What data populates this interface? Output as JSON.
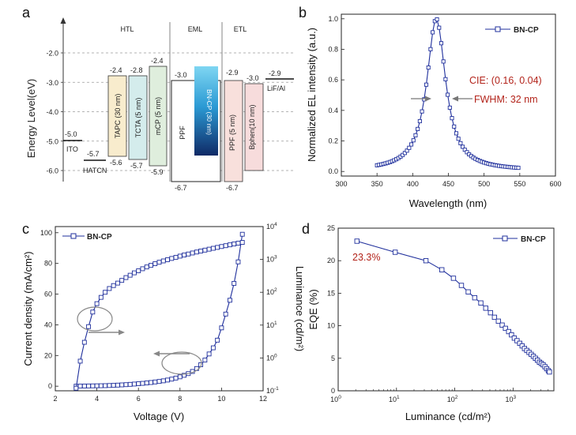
{
  "panels": {
    "a": "a",
    "b": "b",
    "c": "c",
    "d": "d"
  },
  "colors": {
    "series": "#1f2f9c",
    "annotation_red": "#b3241b",
    "tapc": "#f8eccd",
    "tcta": "#d4ecec",
    "mcp": "#dfeedd",
    "ppf": "#f8e0dc",
    "bphen": "#f7dcdc",
    "eml_top": "#7fd6f2",
    "eml_bottom": "#0f2a66"
  },
  "chart_data": [
    {
      "type": "diagram",
      "ylabel": "Energy Level(eV)",
      "yticks": [
        "-2.0",
        "-3.0",
        "-4.0",
        "-5.0",
        "-6.0"
      ],
      "ytick_values": [
        -2.0,
        -3.0,
        -4.0,
        -5.0,
        -6.0
      ],
      "ylim": [
        -7.2,
        -1.0
      ],
      "sections": [
        "HTL",
        "EML",
        "ETL"
      ],
      "lines": [
        {
          "name": "ITO",
          "value": -5.0,
          "value_label": "-5.0"
        },
        {
          "name": "HATCN",
          "value": -5.7,
          "value_label": "-5.7"
        },
        {
          "name": "LiF/Al",
          "value": -2.9,
          "value_label": "-2.9"
        }
      ],
      "layers": [
        {
          "name": "TAPC (30 nm)",
          "lumo": -2.4,
          "homo": -5.6,
          "lumo_label": "-2.4",
          "homo_label": "-5.6"
        },
        {
          "name": "TCTA (5  nm)",
          "lumo": -2.8,
          "homo": -5.7,
          "lumo_label": "-2.8",
          "homo_label": "-5.7"
        },
        {
          "name": "mCP (5  nm)",
          "lumo": -2.4,
          "homo": -5.9,
          "lumo_label": "-2.4",
          "homo_label": "-5.9"
        },
        {
          "name": "PPF",
          "lumo": -3.0,
          "homo": -6.7,
          "lumo_label": "-3.0",
          "homo_label": "-6.7"
        },
        {
          "name": "BN-CP (30 nm)"
        },
        {
          "name": "PPF (5 nm)",
          "lumo": -2.9,
          "homo": -6.7,
          "lumo_label": "-2.9",
          "homo_label": "-6.7"
        },
        {
          "name": "Bphen(10 nm)",
          "lumo": -3.0,
          "lumo_label": "-3.0"
        }
      ]
    },
    {
      "type": "line",
      "xlabel": "Wavelength (nm)",
      "ylabel": "Normalized EL intensity (a.u.)",
      "xlim": [
        300,
        600
      ],
      "ylim": [
        -0.03,
        1.03
      ],
      "xticks": [
        300,
        350,
        400,
        450,
        500,
        550,
        600
      ],
      "yticks": [
        0.0,
        0.2,
        0.4,
        0.6,
        0.8,
        1.0
      ],
      "ytick_labels": [
        "0.0",
        "0.2",
        "0.4",
        "0.6",
        "0.8",
        "1.0"
      ],
      "series": [
        {
          "name": "BN-CP"
        }
      ],
      "peak": 433,
      "fwhm_nm": 32,
      "baseline": 0.005,
      "range": [
        350,
        550
      ],
      "step": 3,
      "annotations": [
        "CIE: (0.16, 0.04)",
        "FWHM: 32 nm"
      ]
    },
    {
      "type": "line",
      "xlabel": "Voltage (V)",
      "ylabel": "Current density (mA/cm²)",
      "y2label": "Luminance (cd/m²)",
      "xlim": [
        2,
        12
      ],
      "ylim": [
        -3,
        104
      ],
      "y2lim_log10": [
        -1,
        4
      ],
      "xticks": [
        2,
        4,
        6,
        8,
        10,
        12
      ],
      "yticks": [
        0,
        20,
        40,
        60,
        80,
        100
      ],
      "y2ticks": [
        "10",
        "10",
        "10",
        "10",
        "10",
        "10"
      ],
      "y2tick_exponents": [
        "-1",
        "0",
        "1",
        "2",
        "3",
        "4"
      ],
      "series": [
        {
          "name": "BN-CP",
          "axis": "left",
          "x": [
            3.0,
            3.2,
            3.4,
            3.6,
            3.8,
            4.0,
            4.2,
            4.4,
            4.6,
            4.8,
            5.0,
            5.2,
            5.4,
            5.6,
            5.8,
            6.0,
            6.2,
            6.4,
            6.6,
            6.8,
            7.0,
            7.2,
            7.4,
            7.6,
            7.8,
            8.0,
            8.2,
            8.4,
            8.6,
            8.8,
            9.0,
            9.2,
            9.4,
            9.6,
            9.8,
            10.0,
            10.2,
            10.4,
            10.6,
            10.8,
            11.0
          ],
          "y": [
            0.0,
            0.05,
            0.1,
            0.15,
            0.2,
            0.25,
            0.3,
            0.35,
            0.45,
            0.55,
            0.7,
            0.85,
            1.0,
            1.2,
            1.4,
            1.6,
            1.85,
            2.1,
            2.4,
            2.75,
            3.1,
            3.5,
            4.0,
            4.6,
            5.3,
            6.1,
            7.1,
            8.2,
            9.6,
            11.5,
            14,
            17,
            21,
            25,
            30,
            38,
            47,
            56,
            67,
            81,
            99
          ]
        },
        {
          "name": "luminance",
          "axis": "right",
          "x": [
            3.0,
            3.2,
            3.4,
            3.6,
            3.8,
            4.0,
            4.2,
            4.4,
            4.6,
            4.8,
            5.0,
            5.2,
            5.4,
            5.6,
            5.8,
            6.0,
            6.2,
            6.4,
            6.6,
            6.8,
            7.0,
            7.2,
            7.4,
            7.6,
            7.8,
            8.0,
            8.2,
            8.4,
            8.6,
            8.8,
            9.0,
            9.2,
            9.4,
            9.6,
            9.8,
            10.0,
            10.2,
            10.4,
            10.6,
            10.8,
            11.0
          ],
          "y": [
            0.12,
            0.8,
            3,
            9,
            25,
            45,
            70,
            100,
            130,
            160,
            190,
            230,
            280,
            330,
            390,
            450,
            520,
            590,
            660,
            740,
            820,
            900,
            980,
            1070,
            1160,
            1260,
            1360,
            1460,
            1570,
            1680,
            1800,
            1920,
            2050,
            2180,
            2320,
            2470,
            2620,
            2780,
            2950,
            3120,
            3300
          ]
        }
      ]
    },
    {
      "type": "line",
      "xlabel": "Luminance (cd/m²)",
      "ylabel": "EQE (%)",
      "xlim_log10": [
        0,
        3.7
      ],
      "ylim": [
        0,
        25
      ],
      "xticks": [
        "10",
        "10",
        "10",
        "10"
      ],
      "xtick_exponents": [
        "0",
        "1",
        "2",
        "3"
      ],
      "yticks": [
        0,
        5,
        10,
        15,
        20,
        25
      ],
      "series": [
        {
          "name": "BN-CP",
          "x": [
            2.1,
            9.5,
            32,
            60,
            95,
            130,
            170,
            220,
            280,
            340,
            410,
            480,
            560,
            650,
            740,
            840,
            940,
            1050,
            1170,
            1300,
            1430,
            1570,
            1720,
            1880,
            2050,
            2230,
            2420,
            2620,
            2830,
            3050,
            3280,
            3520,
            3770,
            4030,
            4200
          ],
          "y": [
            23.0,
            21.3,
            20.0,
            18.6,
            17.3,
            16.2,
            15.2,
            14.3,
            13.5,
            12.7,
            12.0,
            11.3,
            10.7,
            10.1,
            9.6,
            9.1,
            8.6,
            8.1,
            7.7,
            7.3,
            6.9,
            6.5,
            6.2,
            5.9,
            5.6,
            5.3,
            5.0,
            4.7,
            4.4,
            4.2,
            4.0,
            3.7,
            3.4,
            3.1,
            2.9
          ]
        }
      ],
      "annotations": [
        "23.3%"
      ]
    }
  ]
}
